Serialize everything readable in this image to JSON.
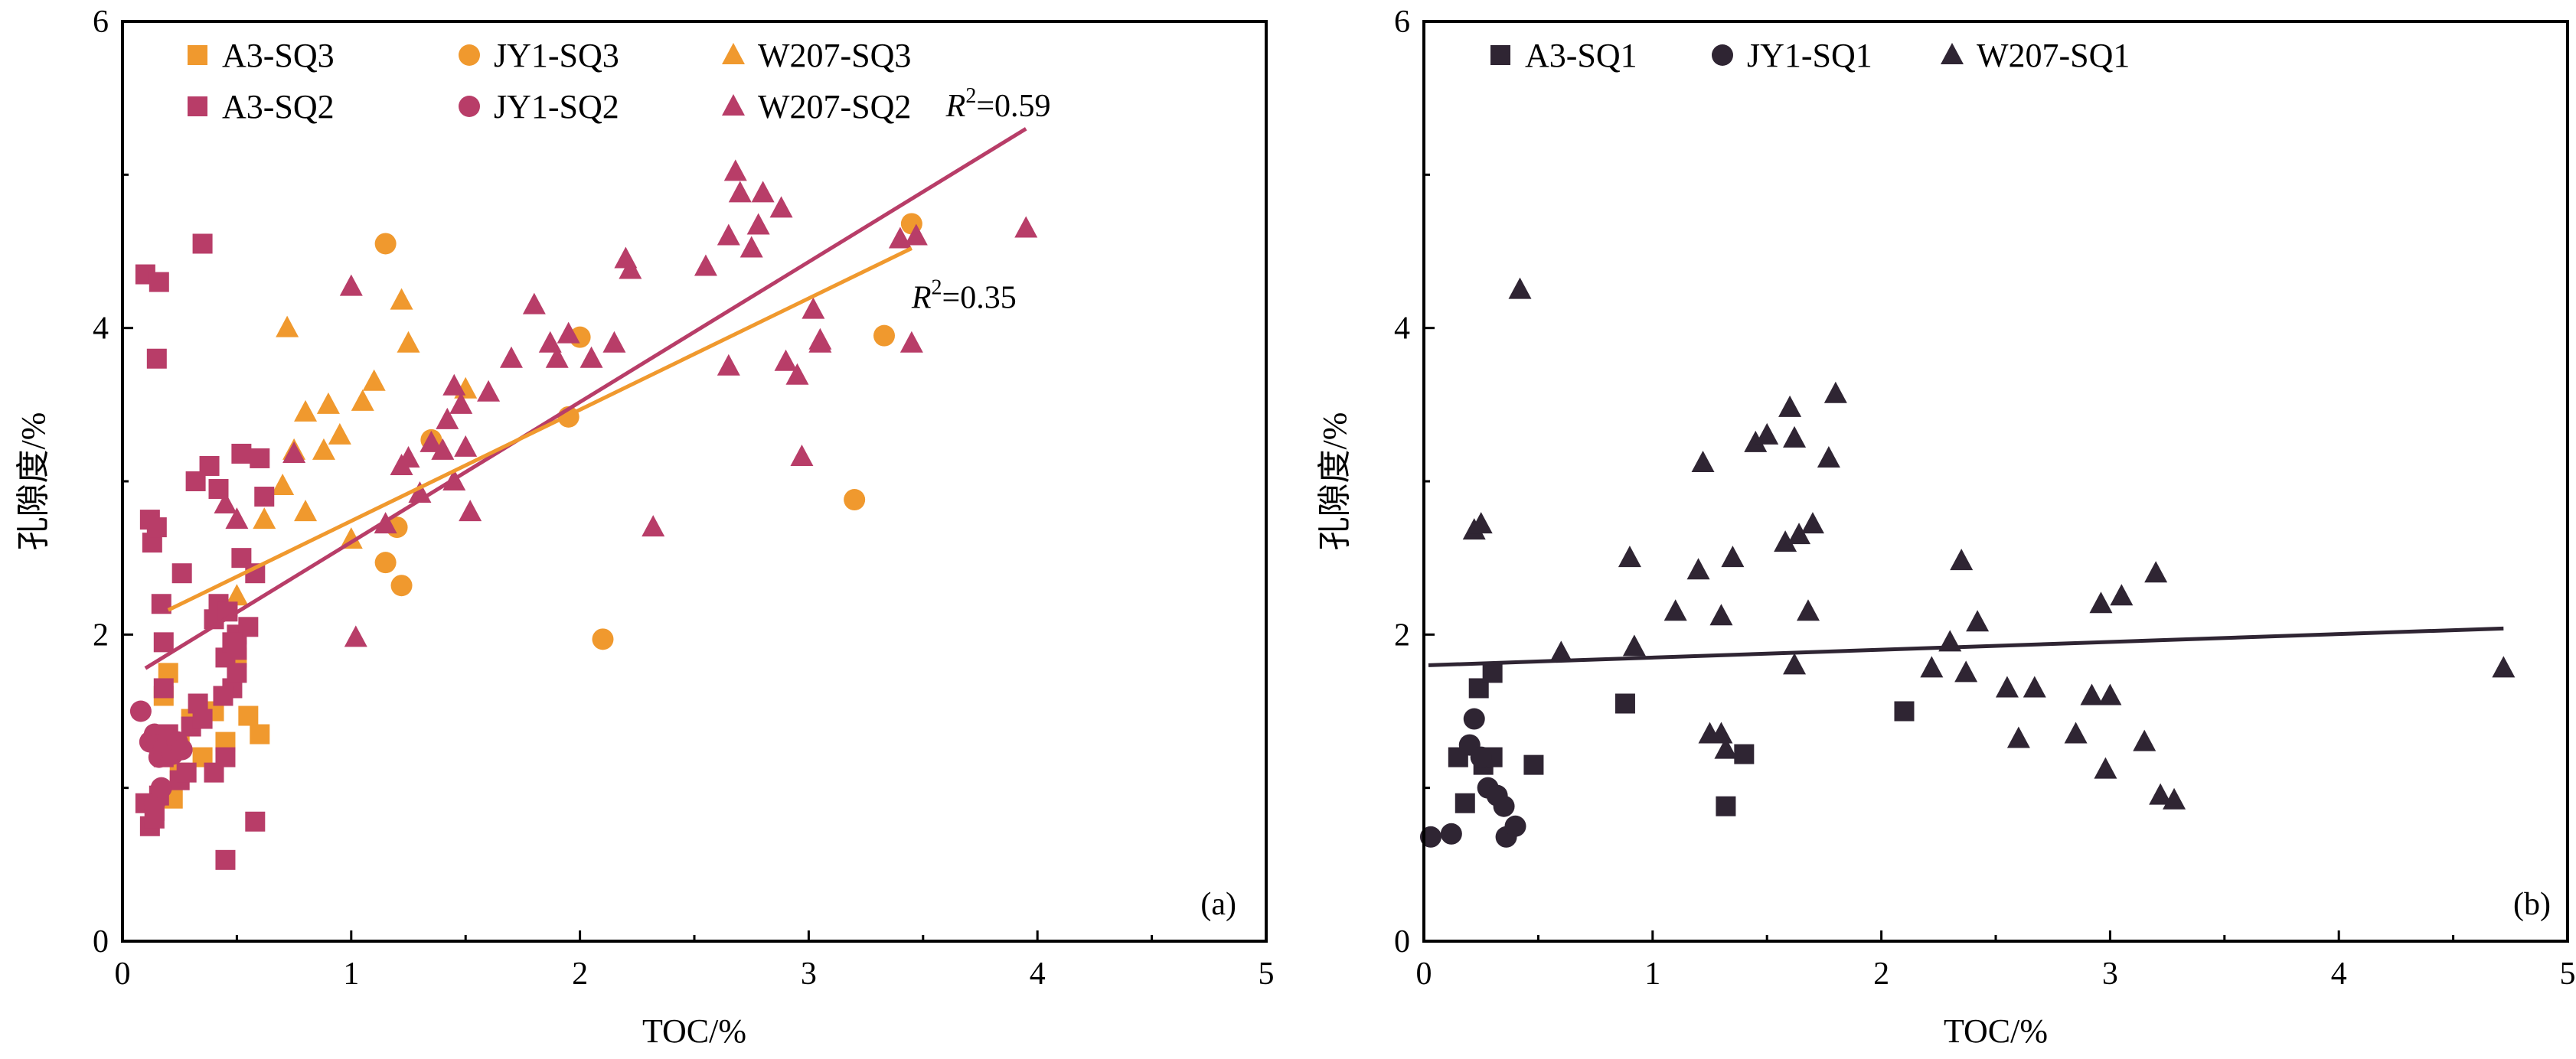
{
  "colors": {
    "sq3": "#F0992E",
    "sq2": "#B83D68",
    "sq1": "#2F2533"
  },
  "chart_data": [
    {
      "type": "scatter",
      "panel_label": "(a)",
      "xlabel": "TOC/%",
      "ylabel": "孔隙度/%",
      "xlim": [
        0,
        5
      ],
      "ylim": [
        0,
        6
      ],
      "xticks": [
        0,
        1,
        2,
        3,
        4,
        5
      ],
      "yticks": [
        0,
        2,
        4,
        6
      ],
      "legend_position": "top-left",
      "annotations": [
        {
          "prefix": "R",
          "sup": "2",
          "text": "=0.59",
          "x": 3.6,
          "y": 5.45
        },
        {
          "prefix": "R",
          "sup": "2",
          "text": "=0.35",
          "x": 3.45,
          "y": 4.2
        }
      ],
      "fits": [
        {
          "series_group": "SQ2",
          "color": "#B83D68",
          "x": [
            0.1,
            3.95
          ],
          "y": [
            1.78,
            5.3
          ]
        },
        {
          "series_group": "SQ3",
          "color": "#F0992E",
          "x": [
            0.2,
            3.45
          ],
          "y": [
            2.16,
            4.52
          ]
        }
      ],
      "series": [
        {
          "name": "A3-SQ3",
          "marker": "square",
          "color": "#F0992E",
          "x": [
            0.18,
            0.2,
            0.22,
            0.25,
            0.3,
            0.35,
            0.45,
            0.5,
            0.55,
            0.6,
            0.2,
            0.25,
            0.4
          ],
          "y": [
            1.6,
            1.75,
            0.93,
            1.3,
            1.45,
            1.2,
            1.3,
            1.85,
            1.47,
            1.35,
            1.2,
            1.1,
            1.5
          ]
        },
        {
          "name": "JY1-SQ3",
          "marker": "circle",
          "color": "#F0992E",
          "x": [
            1.15,
            1.15,
            1.2,
            1.22,
            1.35,
            1.95,
            2.0,
            2.1,
            3.2,
            3.33,
            3.45
          ],
          "y": [
            4.55,
            2.47,
            2.7,
            2.32,
            3.27,
            3.42,
            3.94,
            1.97,
            2.88,
            3.95,
            4.68
          ]
        },
        {
          "name": "W207-SQ3",
          "marker": "triangle",
          "color": "#F0992E",
          "x": [
            0.5,
            0.7,
            0.72,
            0.75,
            0.8,
            0.8,
            0.88,
            0.9,
            0.95,
            1.0,
            1.05,
            1.1,
            1.22,
            1.25,
            1.5,
            0.62
          ],
          "y": [
            2.25,
            2.97,
            4.0,
            3.2,
            3.45,
            2.8,
            3.2,
            3.5,
            3.3,
            2.62,
            3.52,
            3.65,
            4.18,
            3.9,
            3.6,
            2.75
          ]
        },
        {
          "name": "A3-SQ2",
          "marker": "square",
          "color": "#B83D68",
          "x": [
            0.1,
            0.12,
            0.13,
            0.15,
            0.15,
            0.17,
            0.18,
            0.18,
            0.12,
            0.14,
            0.16,
            0.18,
            0.2,
            0.22,
            0.25,
            0.28,
            0.3,
            0.33,
            0.35,
            0.38,
            0.4,
            0.42,
            0.45,
            0.45,
            0.48,
            0.5,
            0.52,
            0.55,
            0.58,
            0.6,
            0.35,
            0.42,
            0.52,
            0.62,
            0.45,
            0.5,
            0.48,
            0.4,
            0.58,
            0.44,
            0.46,
            0.5,
            0.32,
            0.26,
            0.1,
            0.14,
            0.16
          ],
          "y": [
            4.35,
            2.75,
            2.6,
            3.8,
            2.7,
            2.2,
            1.95,
            1.65,
            0.75,
            0.85,
            0.95,
            1.2,
            1.35,
            1.3,
            1.05,
            1.1,
            1.4,
            1.55,
            4.55,
            3.1,
            2.1,
            2.2,
            1.2,
            0.53,
            1.65,
            2.0,
            3.18,
            2.05,
            0.78,
            3.15,
            1.45,
            2.95,
            2.5,
            2.9,
            1.85,
            1.75,
            1.95,
            1.1,
            2.4,
            1.6,
            2.15,
            1.9,
            3.0,
            2.4,
            0.9,
            0.8,
            4.3
          ]
        },
        {
          "name": "JY1-SQ2",
          "marker": "circle",
          "color": "#B83D68",
          "x": [
            0.08,
            0.12,
            0.14,
            0.15,
            0.16,
            0.18,
            0.2,
            0.22,
            0.24,
            0.26,
            0.14,
            0.17
          ],
          "y": [
            1.5,
            1.3,
            1.35,
            1.28,
            1.2,
            1.25,
            1.32,
            1.22,
            1.3,
            1.25,
            0.9,
            1.0
          ]
        },
        {
          "name": "W207-SQ2",
          "marker": "triangle",
          "color": "#B83D68",
          "x": [
            0.45,
            0.5,
            0.75,
            1.0,
            1.02,
            1.15,
            1.22,
            1.25,
            1.3,
            1.35,
            1.4,
            1.42,
            1.45,
            1.45,
            1.48,
            1.5,
            1.52,
            1.6,
            1.7,
            1.8,
            1.87,
            1.9,
            1.95,
            2.05,
            2.15,
            2.2,
            2.22,
            2.32,
            2.55,
            2.65,
            2.65,
            2.68,
            2.7,
            2.75,
            2.78,
            2.8,
            2.88,
            2.9,
            2.95,
            2.97,
            3.02,
            3.05,
            3.05,
            3.4,
            3.45,
            3.47,
            3.95
          ],
          "y": [
            2.85,
            2.75,
            3.18,
            4.27,
            1.98,
            2.72,
            3.1,
            3.15,
            2.92,
            3.25,
            3.2,
            3.4,
            3.0,
            3.62,
            3.5,
            3.22,
            2.8,
            3.58,
            3.8,
            4.15,
            3.9,
            3.8,
            3.96,
            3.8,
            3.9,
            4.45,
            4.38,
            2.7,
            4.4,
            3.75,
            4.6,
            5.02,
            4.88,
            4.52,
            4.67,
            4.88,
            4.78,
            3.78,
            3.69,
            3.16,
            4.12,
            3.92,
            3.9,
            4.58,
            3.9,
            4.6,
            4.65
          ]
        }
      ]
    },
    {
      "type": "scatter",
      "panel_label": "(b)",
      "xlabel": "TOC/%",
      "ylabel": "孔隙度/%",
      "xlim": [
        0,
        5
      ],
      "ylim": [
        0,
        6
      ],
      "xticks": [
        0,
        1,
        2,
        3,
        4,
        5
      ],
      "yticks": [
        0,
        2,
        4,
        6
      ],
      "legend_position": "top-left",
      "annotations": [],
      "fits": [
        {
          "series_group": "SQ1",
          "color": "#2F2533",
          "x": [
            0.02,
            4.72
          ],
          "y": [
            1.8,
            2.04
          ]
        }
      ],
      "series": [
        {
          "name": "A3-SQ1",
          "marker": "square",
          "color": "#2F2533",
          "x": [
            0.15,
            0.18,
            0.24,
            0.26,
            0.3,
            0.3,
            0.48,
            0.88,
            1.32,
            1.4,
            2.1
          ],
          "y": [
            1.2,
            0.9,
            1.65,
            1.15,
            1.75,
            1.2,
            1.15,
            1.55,
            0.88,
            1.22,
            1.5
          ]
        },
        {
          "name": "JY1-SQ1",
          "marker": "circle",
          "color": "#2F2533",
          "x": [
            0.03,
            0.12,
            0.2,
            0.22,
            0.25,
            0.28,
            0.32,
            0.35,
            0.36,
            0.4
          ],
          "y": [
            0.68,
            0.7,
            1.28,
            1.45,
            1.2,
            1.0,
            0.95,
            0.88,
            0.68,
            0.75
          ]
        },
        {
          "name": "W207-SQ1",
          "marker": "triangle",
          "color": "#2F2533",
          "x": [
            0.22,
            0.25,
            0.42,
            0.6,
            0.9,
            0.92,
            1.1,
            1.2,
            1.22,
            1.25,
            1.3,
            1.3,
            1.32,
            1.35,
            1.45,
            1.5,
            1.58,
            1.6,
            1.62,
            1.62,
            1.64,
            1.68,
            1.7,
            1.77,
            1.8,
            2.22,
            2.3,
            2.35,
            2.37,
            2.42,
            2.55,
            2.6,
            2.67,
            2.85,
            2.92,
            2.96,
            2.98,
            3.0,
            3.05,
            3.15,
            3.2,
            3.22,
            3.28,
            4.72
          ],
          "y": [
            2.68,
            2.72,
            4.25,
            1.88,
            2.5,
            1.92,
            2.15,
            2.42,
            3.12,
            1.35,
            2.12,
            1.35,
            1.25,
            2.5,
            3.25,
            3.3,
            2.6,
            3.48,
            3.28,
            1.8,
            2.65,
            2.15,
            2.72,
            3.15,
            3.57,
            1.78,
            1.95,
            2.48,
            1.75,
            2.08,
            1.65,
            1.32,
            1.65,
            1.35,
            1.6,
            2.2,
            1.12,
            1.6,
            2.25,
            1.3,
            2.4,
            0.95,
            0.92,
            1.78
          ]
        }
      ]
    }
  ]
}
